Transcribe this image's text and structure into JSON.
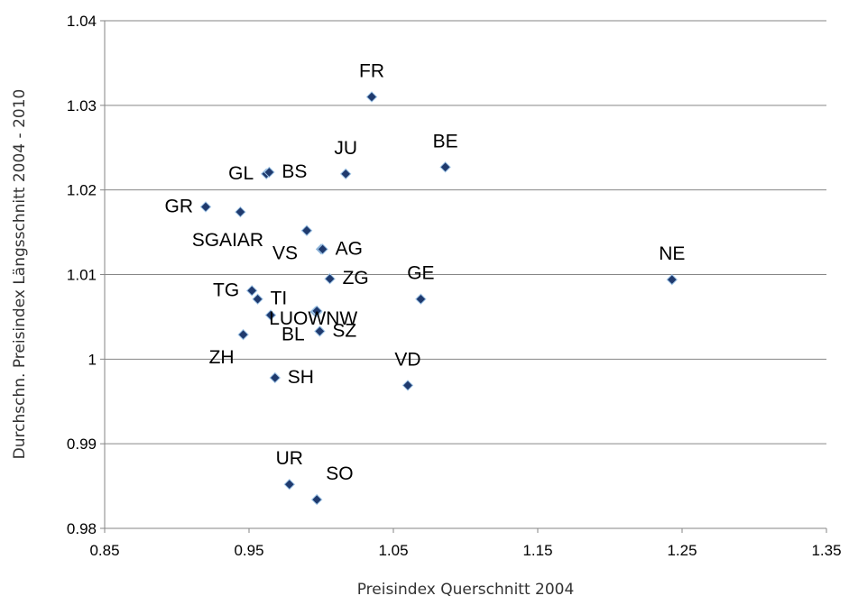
{
  "chart_data": {
    "type": "scatter",
    "title": "",
    "xlabel": "Preisindex Querschnitt 2004",
    "ylabel": "Durchschn. Preisindex Längsschnitt 2004 - 2010",
    "xlim": [
      0.85,
      1.35
    ],
    "ylim": [
      0.98,
      1.04
    ],
    "x_ticks": [
      "0.85",
      "0.95",
      "1.05",
      "1.15",
      "1.25",
      "1.35"
    ],
    "y_ticks": [
      "0.98",
      "0.99",
      "1",
      "1.01",
      "1.02",
      "1.03",
      "1.04"
    ],
    "grid": "horizontal",
    "legend": "none",
    "marker_color": "#1f3a6e",
    "marker_shape": "diamond",
    "points": [
      {
        "label": "FR",
        "x": 1.035,
        "y": 1.031
      },
      {
        "label": "BE",
        "x": 1.086,
        "y": 1.0227
      },
      {
        "label": "JU",
        "x": 1.017,
        "y": 1.0219
      },
      {
        "label": "GL",
        "x": 0.962,
        "y": 1.0219
      },
      {
        "label": "BS",
        "x": 0.964,
        "y": 1.0221
      },
      {
        "label": "GR",
        "x": 0.92,
        "y": 1.018
      },
      {
        "label": "SG",
        "x": 0.944,
        "y": 1.0174
      },
      {
        "label": "AI",
        "x": 0.99,
        "y": 1.0152
      },
      {
        "label": "AR",
        "x": 0.99,
        "y": 1.0152
      },
      {
        "label": "VS",
        "x": 1.0,
        "y": 1.013
      },
      {
        "label": "AG",
        "x": 1.001,
        "y": 1.013
      },
      {
        "label": "ZG",
        "x": 1.006,
        "y": 1.0095
      },
      {
        "label": "NE",
        "x": 1.243,
        "y": 1.0094
      },
      {
        "label": "GE",
        "x": 1.069,
        "y": 1.0071
      },
      {
        "label": "TG",
        "x": 0.952,
        "y": 1.0081
      },
      {
        "label": "TI",
        "x": 0.956,
        "y": 1.0071
      },
      {
        "label": "LU",
        "x": 0.996,
        "y": 1.0056
      },
      {
        "label": "OW",
        "x": 0.997,
        "y": 1.0056
      },
      {
        "label": "NW",
        "x": 0.997,
        "y": 1.0057
      },
      {
        "label": "BL",
        "x": 0.965,
        "y": 1.0052
      },
      {
        "label": "SZ",
        "x": 0.999,
        "y": 1.0033
      },
      {
        "label": "ZH",
        "x": 0.946,
        "y": 1.0029
      },
      {
        "label": "VD",
        "x": 1.06,
        "y": 0.9969
      },
      {
        "label": "SH",
        "x": 0.968,
        "y": 0.9978
      },
      {
        "label": "UR",
        "x": 0.978,
        "y": 0.9852
      },
      {
        "label": "SO",
        "x": 0.997,
        "y": 0.9834
      }
    ],
    "labels": [
      {
        "text": "FR",
        "x": 1.035,
        "y": 1.031,
        "at": "above"
      },
      {
        "text": "BE",
        "x": 1.086,
        "y": 1.0227,
        "at": "above"
      },
      {
        "text": "JU",
        "x": 1.017,
        "y": 1.0219,
        "at": "above"
      },
      {
        "text": "GL",
        "x": 0.962,
        "y": 1.0219,
        "at": "left"
      },
      {
        "text": "BS",
        "x": 0.964,
        "y": 1.0221,
        "at": "right"
      },
      {
        "text": "GR",
        "x": 0.92,
        "y": 1.018,
        "at": "left"
      },
      {
        "text": "SGAIAR",
        "x": 0.944,
        "y": 1.0174,
        "at": "below"
      },
      {
        "text": "VS",
        "x": 0.99,
        "y": 1.0152,
        "at": "below-left"
      },
      {
        "text": "AG",
        "x": 1.001,
        "y": 1.013,
        "at": "right"
      },
      {
        "text": "ZG",
        "x": 1.006,
        "y": 1.0095,
        "at": "right"
      },
      {
        "text": "NE",
        "x": 1.243,
        "y": 1.0094,
        "at": "above"
      },
      {
        "text": "GE",
        "x": 1.069,
        "y": 1.0071,
        "at": "above"
      },
      {
        "text": "TG",
        "x": 0.952,
        "y": 1.0081,
        "at": "left"
      },
      {
        "text": "TI",
        "x": 0.956,
        "y": 1.0071,
        "at": "right"
      },
      {
        "text": "LUOWNW",
        "x": 0.997,
        "y": 1.0056,
        "at": "center"
      },
      {
        "text": "BL",
        "x": 0.965,
        "y": 1.0052,
        "at": "below-right"
      },
      {
        "text": "SZ",
        "x": 0.999,
        "y": 1.0033,
        "at": "right"
      },
      {
        "text": "ZH",
        "x": 0.946,
        "y": 1.0029,
        "at": "below-left"
      },
      {
        "text": "VD",
        "x": 1.06,
        "y": 0.9969,
        "at": "above"
      },
      {
        "text": "SH",
        "x": 0.968,
        "y": 0.9978,
        "at": "right"
      },
      {
        "text": "UR",
        "x": 0.978,
        "y": 0.9852,
        "at": "above"
      },
      {
        "text": "SO",
        "x": 0.997,
        "y": 0.9834,
        "at": "above-right"
      }
    ]
  }
}
